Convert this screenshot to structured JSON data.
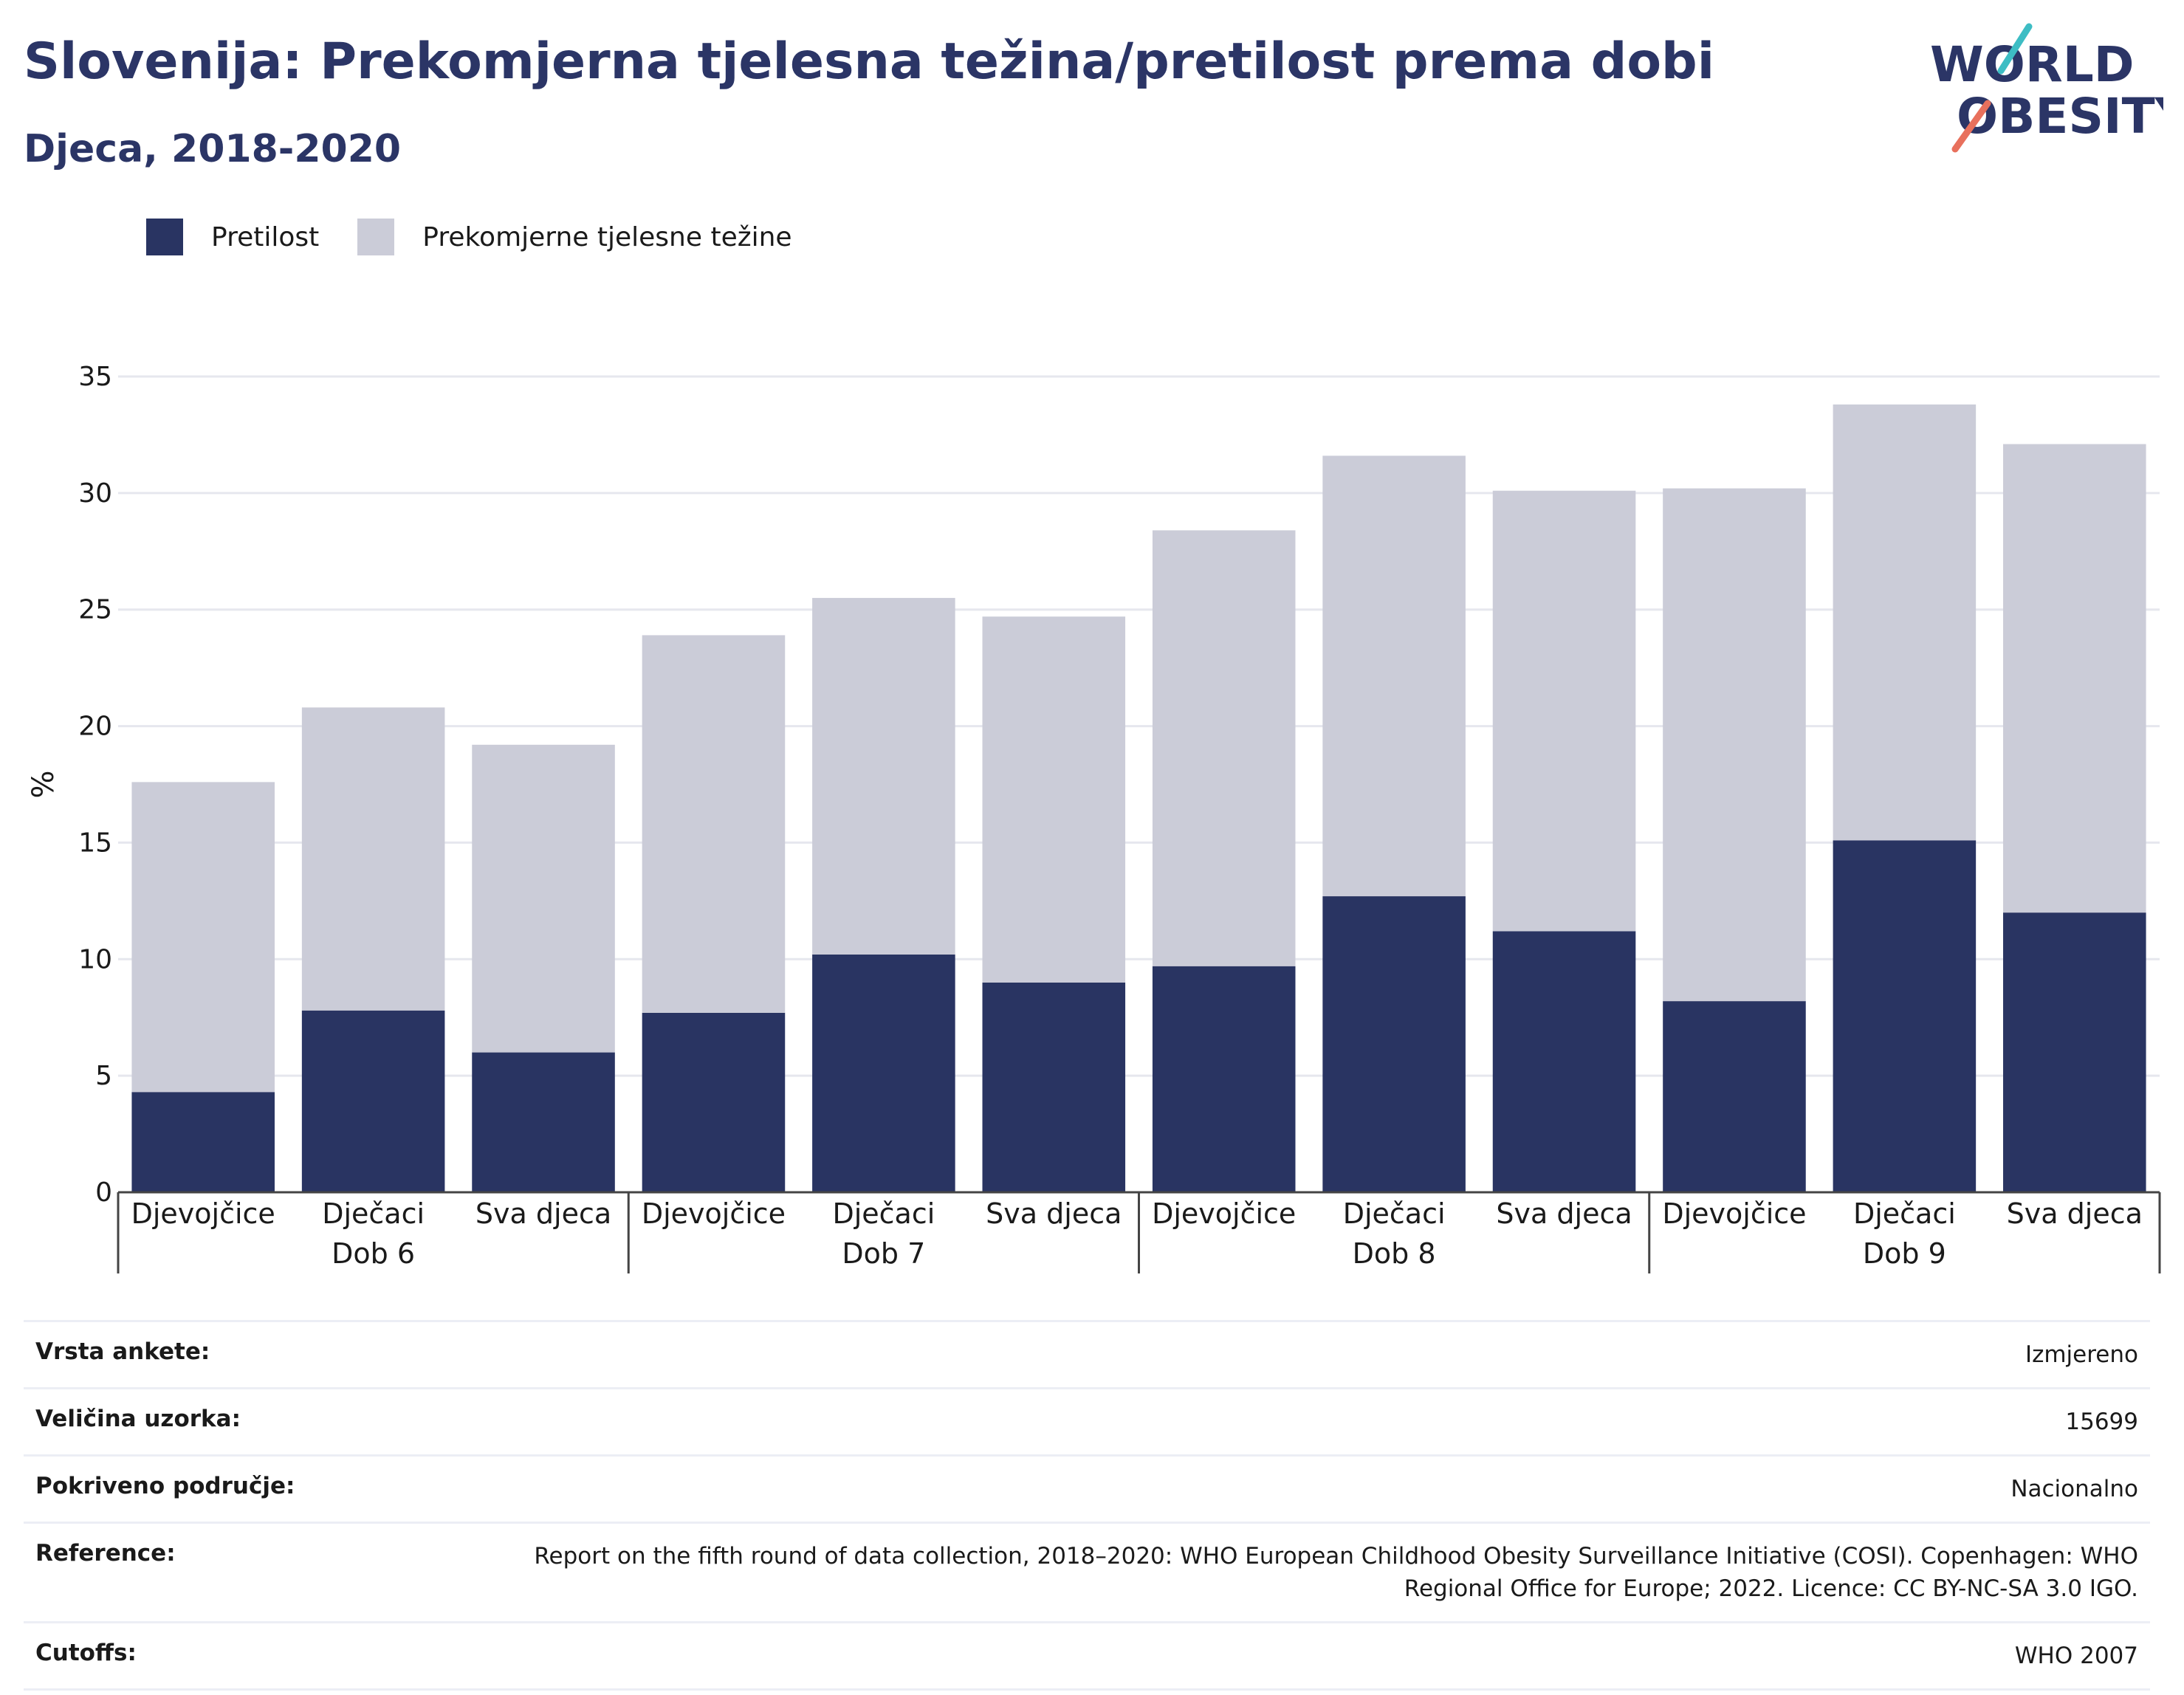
{
  "header": {
    "title": "Slovenija: Prekomjerna tjelesna težina/pretilost prema dobi",
    "subtitle": "Djeca, 2018-2020"
  },
  "logo": {
    "line1": "WORLD",
    "line2": "OBESITY"
  },
  "colors": {
    "obesity": "#293462",
    "overweight": "#cbccd8",
    "title": "#2b3566",
    "logo_teal": "#3dbdc4",
    "logo_coral": "#e8705c"
  },
  "legend": [
    {
      "label": "Pretilost",
      "color": "#293462"
    },
    {
      "label": "Prekomjerne tjelesne težine",
      "color": "#cbccd8"
    }
  ],
  "chart_data": {
    "type": "bar",
    "stacked": true,
    "ylabel": "%",
    "ylim": [
      0,
      35
    ],
    "yticks": [
      0,
      5,
      10,
      15,
      20,
      25,
      30,
      35
    ],
    "grid": true,
    "legend_position": "top-left",
    "groups": [
      {
        "label": "Dob 6",
        "categories": [
          "Djevojčice",
          "Dječaci",
          "Sva djeca"
        ]
      },
      {
        "label": "Dob 7",
        "categories": [
          "Djevojčice",
          "Dječaci",
          "Sva djeca"
        ]
      },
      {
        "label": "Dob 8",
        "categories": [
          "Djevojčice",
          "Dječaci",
          "Sva djeca"
        ]
      },
      {
        "label": "Dob 9",
        "categories": [
          "Djevojčice",
          "Dječaci",
          "Sva djeca"
        ]
      }
    ],
    "series": [
      {
        "name": "Pretilost",
        "values": [
          4.3,
          7.8,
          6.0,
          7.7,
          10.2,
          9.0,
          9.7,
          12.7,
          11.2,
          8.2,
          15.1,
          12.0
        ]
      },
      {
        "name": "Prekomjerne tjelesne težine",
        "values": [
          13.3,
          13.0,
          13.2,
          16.2,
          15.3,
          15.7,
          18.7,
          18.9,
          18.9,
          22.0,
          18.7,
          20.1
        ]
      }
    ]
  },
  "info": [
    {
      "label": "Vrsta ankete:",
      "value": "Izmjereno"
    },
    {
      "label": "Veličina uzorka:",
      "value": "15699"
    },
    {
      "label": "Pokriveno područje:",
      "value": "Nacionalno"
    },
    {
      "label": "Reference:",
      "value": "Report on the fifth round of data collection, 2018–2020: WHO European Childhood Obesity Surveillance Initiative (COSI). Copenhagen: WHO Regional Office for Europe; 2022. Licence: CC BY-NC-SA 3.0 IGO."
    },
    {
      "label": "Cutoffs:",
      "value": "WHO 2007"
    }
  ]
}
